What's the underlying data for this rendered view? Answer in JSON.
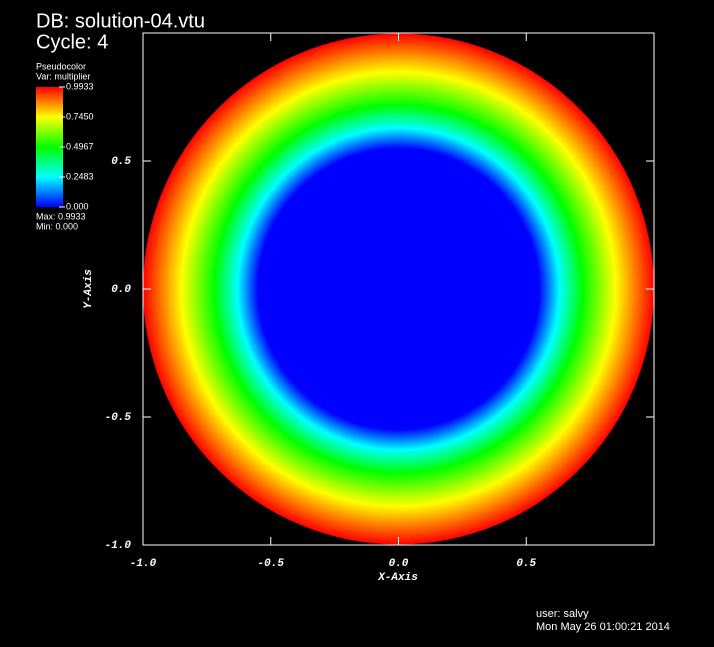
{
  "chart_data": {
    "type": "pseudocolor",
    "title": "DB: solution-04.vtu",
    "subtitle": "Cycle: 4",
    "plot_name": "Pseudocolor",
    "variable": "Var: multiplier",
    "max_label": "Max: 0.9933",
    "min_label": "Min: 0.000",
    "x_label": "X-Axis",
    "y_label": "Y-Axis",
    "user": "user: salvy",
    "date": "Mon May 26 01:00:21 2014",
    "xlim": [
      -1,
      1
    ],
    "ylim": [
      -1,
      1
    ],
    "xticks": [
      {
        "value": -1,
        "label": "-1.0"
      },
      -0.5,
      {
        "value": 0,
        "label": "0.0"
      },
      0.5
    ],
    "yticks": [
      {
        "value": -1,
        "label": "-1.0"
      },
      -0.5,
      {
        "value": 0,
        "label": "0.0"
      },
      0.5
    ],
    "colorbar": {
      "range": [
        0,
        0.9933
      ],
      "ticks": [
        {
          "value": 0,
          "label": "0.000"
        },
        0.2483,
        0.4967,
        {
          "value": 0.745,
          "label": "0.7450"
        },
        0.9933
      ],
      "colors": [
        "#0000ff",
        "#00ffff",
        "#00ff00",
        "#ffff00",
        "#ff0000"
      ]
    },
    "radial_profile": {
      "r": [
        0,
        0.55,
        0.63,
        0.72,
        0.85,
        1
      ],
      "values": [
        0,
        0,
        0.2483,
        0.4967,
        0.745,
        0.9933
      ]
    }
  }
}
